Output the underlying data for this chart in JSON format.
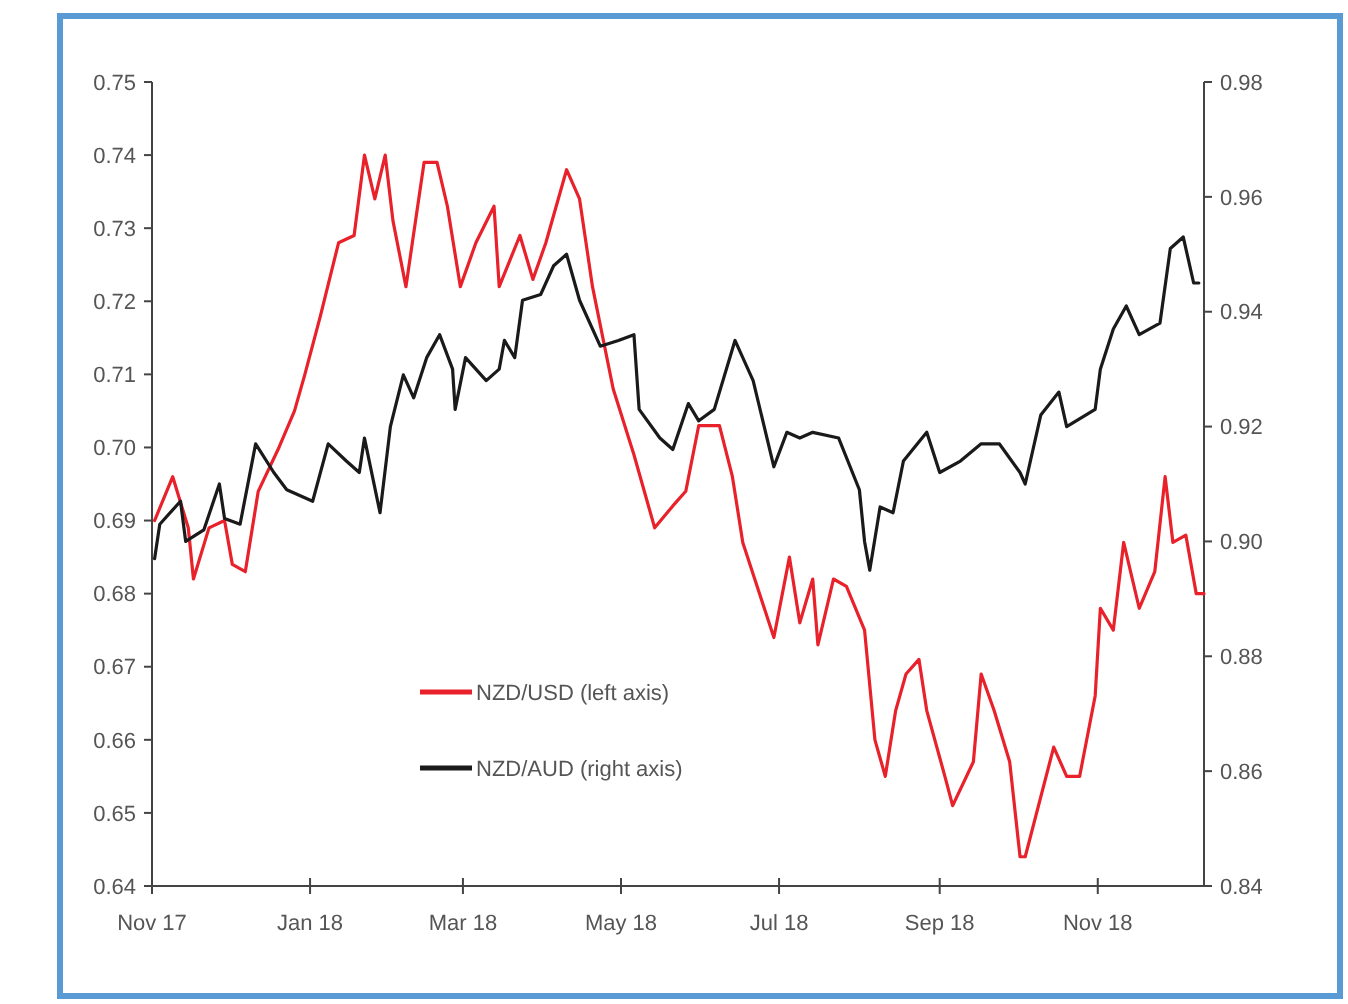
{
  "chart_data": {
    "type": "line",
    "xlim": [
      "2017-11-01",
      "2018-12-12"
    ],
    "xticks": [
      {
        "value": "2017-11-01",
        "label": "Nov 17"
      },
      {
        "value": "2018-01-01",
        "label": "Jan 18"
      },
      {
        "value": "2018-03-01",
        "label": "Mar 18"
      },
      {
        "value": "2018-05-01",
        "label": "May 18"
      },
      {
        "value": "2018-07-01",
        "label": "Jul 18"
      },
      {
        "value": "2018-09-01",
        "label": "Sep 18"
      },
      {
        "value": "2018-11-01",
        "label": "Nov 18"
      }
    ],
    "ylim": [
      0.64,
      0.75
    ],
    "yticks": [
      {
        "value": 0.64,
        "label": "0.64"
      },
      {
        "value": 0.65,
        "label": "0.65"
      },
      {
        "value": 0.66,
        "label": "0.66"
      },
      {
        "value": 0.67,
        "label": "0.67"
      },
      {
        "value": 0.68,
        "label": "0.68"
      },
      {
        "value": 0.69,
        "label": "0.69"
      },
      {
        "value": 0.7,
        "label": "0.70"
      },
      {
        "value": 0.71,
        "label": "0.71"
      },
      {
        "value": 0.72,
        "label": "0.72"
      },
      {
        "value": 0.73,
        "label": "0.73"
      },
      {
        "value": 0.74,
        "label": "0.74"
      },
      {
        "value": 0.75,
        "label": "0.75"
      }
    ],
    "y2lim": [
      0.84,
      0.98
    ],
    "y2ticks": [
      {
        "value": 0.84,
        "label": "0.84"
      },
      {
        "value": 0.86,
        "label": "0.86"
      },
      {
        "value": 0.88,
        "label": "0.88"
      },
      {
        "value": 0.9,
        "label": "0.90"
      },
      {
        "value": 0.92,
        "label": "0.92"
      },
      {
        "value": 0.94,
        "label": "0.94"
      },
      {
        "value": 0.96,
        "label": "0.96"
      },
      {
        "value": 0.98,
        "label": "0.98"
      }
    ],
    "grid": false,
    "legend": "bottom",
    "marker": "none",
    "line_style": "solid",
    "series": [
      {
        "name": "NZD/USD (left axis)",
        "color": "#e8212b",
        "x": [
          "2017-11-02",
          "2017-11-09",
          "2017-11-15",
          "2017-11-17",
          "2017-11-23",
          "2017-11-29",
          "2017-12-02",
          "2017-12-07",
          "2017-12-12",
          "2017-12-20",
          "2017-12-26",
          "2017-12-30",
          "2018-01-05",
          "2018-01-12",
          "2018-01-18",
          "2018-01-22",
          "2018-01-26",
          "2018-01-30",
          "2018-02-02",
          "2018-02-07",
          "2018-02-14",
          "2018-02-19",
          "2018-02-23",
          "2018-02-28",
          "2018-03-06",
          "2018-03-13",
          "2018-03-15",
          "2018-03-23",
          "2018-03-28",
          "2018-04-02",
          "2018-04-10",
          "2018-04-15",
          "2018-04-20",
          "2018-04-28",
          "2018-05-06",
          "2018-05-14",
          "2018-05-21",
          "2018-05-26",
          "2018-05-31",
          "2018-06-08",
          "2018-06-13",
          "2018-06-17",
          "2018-06-29",
          "2018-07-05",
          "2018-07-09",
          "2018-07-14",
          "2018-07-16",
          "2018-07-22",
          "2018-07-27",
          "2018-08-03",
          "2018-08-07",
          "2018-08-11",
          "2018-08-15",
          "2018-08-19",
          "2018-08-24",
          "2018-08-27",
          "2018-09-03",
          "2018-09-06",
          "2018-09-14",
          "2018-09-17",
          "2018-09-22",
          "2018-09-28",
          "2018-10-02",
          "2018-10-04",
          "2018-10-15",
          "2018-10-20",
          "2018-10-25",
          "2018-10-31",
          "2018-11-02",
          "2018-11-07",
          "2018-11-11",
          "2018-11-17",
          "2018-11-23",
          "2018-11-27",
          "2018-11-30",
          "2018-12-05",
          "2018-12-09",
          "2018-12-12"
        ],
        "values": [
          0.69,
          0.696,
          0.689,
          0.682,
          0.689,
          0.69,
          0.684,
          0.683,
          0.694,
          0.7,
          0.705,
          0.71,
          0.718,
          0.728,
          0.729,
          0.74,
          0.734,
          0.74,
          0.731,
          0.722,
          0.739,
          0.739,
          0.733,
          0.722,
          0.728,
          0.733,
          0.722,
          0.729,
          0.723,
          0.728,
          0.738,
          0.734,
          0.722,
          0.708,
          0.699,
          0.689,
          0.692,
          0.694,
          0.703,
          0.703,
          0.696,
          0.687,
          0.674,
          0.685,
          0.676,
          0.682,
          0.673,
          0.682,
          0.681,
          0.675,
          0.66,
          0.655,
          0.664,
          0.669,
          0.671,
          0.664,
          0.655,
          0.651,
          0.657,
          0.669,
          0.664,
          0.657,
          0.644,
          0.644,
          0.659,
          0.655,
          0.655,
          0.666,
          0.678,
          0.675,
          0.687,
          0.678,
          0.683,
          0.696,
          0.687,
          0.688,
          0.68,
          0.68
        ]
      },
      {
        "name": "NZD/AUD (right axis)",
        "color": "#1a1a1a",
        "axis": "y2",
        "x": [
          "2017-11-02",
          "2017-11-04",
          "2017-11-12",
          "2017-11-14",
          "2017-11-21",
          "2017-11-27",
          "2017-11-29",
          "2017-12-05",
          "2017-12-11",
          "2017-12-18",
          "2017-12-23",
          "2018-01-02",
          "2018-01-08",
          "2018-01-15",
          "2018-01-20",
          "2018-01-22",
          "2018-01-28",
          "2018-02-01",
          "2018-02-06",
          "2018-02-10",
          "2018-02-15",
          "2018-02-20",
          "2018-02-25",
          "2018-02-26",
          "2018-03-02",
          "2018-03-10",
          "2018-03-15",
          "2018-03-17",
          "2018-03-21",
          "2018-03-24",
          "2018-03-31",
          "2018-04-05",
          "2018-04-10",
          "2018-04-15",
          "2018-04-23",
          "2018-04-30",
          "2018-05-06",
          "2018-05-08",
          "2018-05-16",
          "2018-05-21",
          "2018-05-27",
          "2018-05-31",
          "2018-06-06",
          "2018-06-14",
          "2018-06-21",
          "2018-06-29",
          "2018-07-04",
          "2018-07-09",
          "2018-07-14",
          "2018-07-24",
          "2018-08-01",
          "2018-08-03",
          "2018-08-05",
          "2018-08-09",
          "2018-08-14",
          "2018-08-18",
          "2018-08-27",
          "2018-09-01",
          "2018-09-09",
          "2018-09-17",
          "2018-09-24",
          "2018-10-02",
          "2018-10-04",
          "2018-10-10",
          "2018-10-17",
          "2018-10-20",
          "2018-10-31",
          "2018-11-02",
          "2018-11-07",
          "2018-11-12",
          "2018-11-17",
          "2018-11-25",
          "2018-11-29",
          "2018-12-04",
          "2018-12-08",
          "2018-12-10"
        ],
        "values": [
          0.897,
          0.903,
          0.907,
          0.9,
          0.902,
          0.91,
          0.904,
          0.903,
          0.917,
          0.912,
          0.909,
          0.907,
          0.917,
          0.914,
          0.912,
          0.918,
          0.905,
          0.92,
          0.929,
          0.925,
          0.932,
          0.936,
          0.93,
          0.923,
          0.932,
          0.928,
          0.93,
          0.935,
          0.932,
          0.942,
          0.943,
          0.948,
          0.95,
          0.942,
          0.934,
          0.935,
          0.936,
          0.923,
          0.918,
          0.916,
          0.924,
          0.921,
          0.923,
          0.935,
          0.928,
          0.913,
          0.919,
          0.918,
          0.919,
          0.918,
          0.909,
          0.9,
          0.895,
          0.906,
          0.905,
          0.914,
          0.919,
          0.912,
          0.914,
          0.917,
          0.917,
          0.912,
          0.91,
          0.922,
          0.926,
          0.92,
          0.923,
          0.93,
          0.937,
          0.941,
          0.936,
          0.938,
          0.951,
          0.953,
          0.945,
          0.945
        ]
      }
    ]
  }
}
